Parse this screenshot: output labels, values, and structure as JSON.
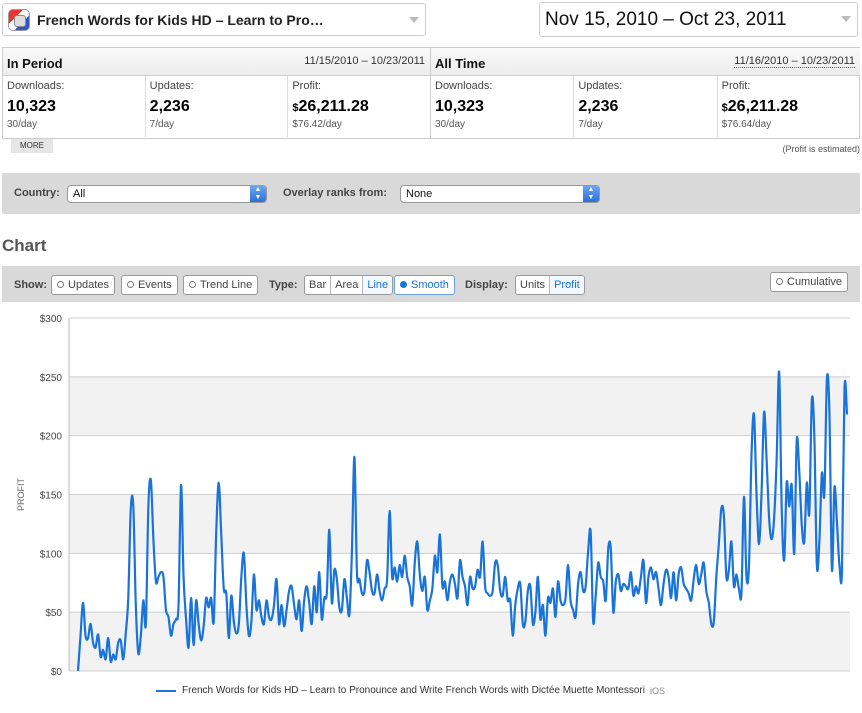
{
  "app_selector": {
    "title": "French Words for Kids HD – Learn to Pro…"
  },
  "date_range": "Nov 15, 2010 – Oct 23, 2011",
  "stats": {
    "in_period": {
      "title": "In Period",
      "range": "11/15/2010 – 10/23/2011",
      "downloads": {
        "label": "Downloads:",
        "value": "10,323",
        "sub": "30/day"
      },
      "updates": {
        "label": "Updates:",
        "value": "2,236",
        "sub": "7/day"
      },
      "profit": {
        "label": "Profit:",
        "currency": "$",
        "value": "26,211.28",
        "sub": "$76.42/day"
      }
    },
    "all_time": {
      "title": "All Time",
      "range": "11/16/2010 – 10/23/2011",
      "downloads": {
        "label": "Downloads:",
        "value": "10,323",
        "sub": "30/day"
      },
      "updates": {
        "label": "Updates:",
        "value": "2,236",
        "sub": "7/day"
      },
      "profit": {
        "label": "Profit:",
        "currency": "$",
        "value": "26,211.28",
        "sub": "$76.64/day"
      }
    },
    "more_label": "MORE",
    "profit_note": "(Profit is estimated)"
  },
  "filters": {
    "country_label": "Country:",
    "country_value": "All",
    "overlay_label": "Overlay ranks from:",
    "overlay_value": "None"
  },
  "chart_section_title": "Chart",
  "toolbar": {
    "show_label": "Show:",
    "updates": "Updates",
    "events": "Events",
    "trend_line": "Trend Line",
    "type_label": "Type:",
    "type_options": [
      "Bar",
      "Area",
      "Line"
    ],
    "type_selected": "Line",
    "smooth": "Smooth",
    "display_label": "Display:",
    "display_options": [
      "Units",
      "Profit"
    ],
    "display_selected": "Profit",
    "cumulative": "Cumulative"
  },
  "colors": {
    "series": "#1a73d9",
    "toolbar_bg": "#d9d9d9",
    "plot_band": "#f2f2f2"
  },
  "chart_data": {
    "type": "line",
    "ylabel": "PROFIT",
    "ylim": [
      0,
      300
    ],
    "y_ticks": [
      "$0",
      "$50",
      "$100",
      "$150",
      "$200",
      "$250",
      "$300"
    ],
    "grid": true,
    "legend_position": "bottom",
    "series": [
      {
        "name": "French Words for Kids HD – Learn to Pronounce and Write French Words with Dictée Muette Montessori",
        "platform": "iOS",
        "values": [
          0,
          30,
          58,
          30,
          28,
          40,
          24,
          20,
          31,
          12,
          18,
          10,
          28,
          8,
          14,
          10,
          24,
          26,
          10,
          32,
          62,
          138,
          140,
          56,
          15,
          30,
          60,
          40,
          140,
          162,
          112,
          76,
          80,
          84,
          80,
          52,
          46,
          30,
          40,
          44,
          56,
          158,
          80,
          44,
          20,
          62,
          22,
          60,
          40,
          26,
          38,
          62,
          54,
          62,
          42,
          118,
          160,
          116,
          70,
          66,
          28,
          64,
          42,
          32,
          40,
          80,
          100,
          56,
          30,
          42,
          82,
          52,
          60,
          46,
          40,
          60,
          46,
          44,
          56,
          78,
          40,
          56,
          38,
          52,
          68,
          72,
          56,
          44,
          60,
          34,
          60,
          72,
          58,
          40,
          72,
          50,
          84,
          44,
          62,
          66,
          120,
          58,
          86,
          78,
          54,
          52,
          78,
          62,
          48,
          102,
          182,
          84,
          78,
          66,
          68,
          94,
          84,
          68,
          66,
          82,
          68,
          60,
          70,
          78,
          136,
          80,
          88,
          76,
          90,
          80,
          98,
          80,
          72,
          56,
          92,
          110,
          82,
          68,
          80,
          52,
          60,
          70,
          98,
          84,
          116,
          72,
          76,
          60,
          76,
          82,
          74,
          62,
          94,
          80,
          72,
          56,
          80,
          70,
          72,
          86,
          80,
          110,
          72,
          66,
          64,
          68,
          92,
          90,
          68,
          64,
          80,
          60,
          60,
          30,
          56,
          70,
          74,
          40,
          42,
          68,
          72,
          40,
          50,
          80,
          44,
          56,
          30,
          62,
          58,
          70,
          46,
          76,
          60,
          56,
          62,
          90,
          60,
          52,
          46,
          74,
          84,
          68,
          72,
          102,
          118,
          42,
          64,
          92,
          80,
          76,
          60,
          104,
          104,
          50,
          76,
          82,
          68,
          74,
          72,
          70,
          84,
          64,
          72,
          66,
          80,
          94,
          58,
          80,
          88,
          78,
          84,
          70,
          56,
          74,
          86,
          80,
          62,
          84,
          60,
          82,
          88,
          74,
          70,
          66,
          60,
          78,
          90,
          74,
          82,
          92,
          68,
          58,
          40,
          42,
          80,
          108,
          138,
          132,
          80,
          86,
          110,
          72,
          82,
          70,
          66,
          148,
          80,
          90,
          184,
          218,
          150,
          108,
          152,
          220,
          180,
          130,
          112,
          130,
          180,
          254,
          140,
          94,
          160,
          140,
          158,
          100,
          196,
          170,
          124,
          110,
          160,
          134,
          230,
          200,
          90,
          110,
          168,
          150,
          248,
          220,
          86,
          156,
          126,
          90,
          86,
          240,
          218
        ]
      }
    ]
  }
}
